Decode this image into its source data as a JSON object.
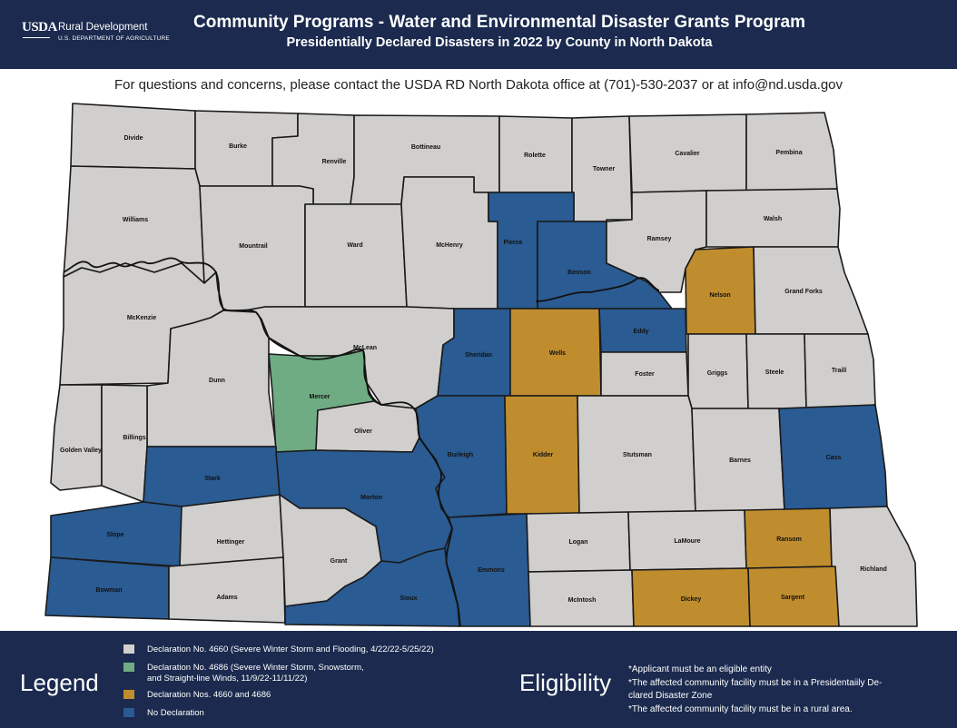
{
  "header": {
    "logo": {
      "mark": "USDA",
      "agency": "Rural Development",
      "department": "U.S. DEPARTMENT OF AGRICULTURE"
    },
    "title": "Community Programs - Water and Environmental Disaster Grants Program",
    "subtitle": "Presidentially Declared Disasters in 2022 by County in North Dakota"
  },
  "contact": "For questions and concerns, please contact the USDA RD North Dakota office at (701)-530-2037 or at info@nd.usda.gov",
  "colors": {
    "decl_4660": "#d1cfcd",
    "decl_4686": "#6fac84",
    "decl_both": "#c08d2e",
    "no_decl": "#2a5b92",
    "banner": "#1b2a4e"
  },
  "legend": {
    "title": "Legend",
    "items": [
      {
        "key": "decl_4660",
        "label": "Declaration No. 4660 (Severe Winter Storm and Flooding, 4/22/22-5/25/22)"
      },
      {
        "key": "decl_4686",
        "label": "Declaration No. 4686 (Severe Winter Storm, Snowstorm,\nand Straight-line Winds, 11/9/22-11/11/22)"
      },
      {
        "key": "decl_both",
        "label": "Declaration Nos. 4660 and 4686"
      },
      {
        "key": "no_decl",
        "label": "No Declaration"
      }
    ]
  },
  "eligibility": {
    "title": "Eligibility",
    "notes": [
      "*Applicant must be an eligible entity",
      "*The affected community facility must be in a Presidentaiily De-\nclared Disaster Zone",
      "*The affected community facility must be in a rural area."
    ]
  },
  "counties": [
    {
      "name": "Divide",
      "status": "decl_4660"
    },
    {
      "name": "Burke",
      "status": "decl_4660"
    },
    {
      "name": "Renville",
      "status": "decl_4660"
    },
    {
      "name": "Bottineau",
      "status": "decl_4660"
    },
    {
      "name": "Rolette",
      "status": "decl_4660"
    },
    {
      "name": "Towner",
      "status": "decl_4660"
    },
    {
      "name": "Cavalier",
      "status": "decl_4660"
    },
    {
      "name": "Pembina",
      "status": "decl_4660"
    },
    {
      "name": "Williams",
      "status": "decl_4660"
    },
    {
      "name": "Mountrail",
      "status": "decl_4660"
    },
    {
      "name": "Ward",
      "status": "decl_4660"
    },
    {
      "name": "McHenry",
      "status": "decl_4660"
    },
    {
      "name": "Pierce",
      "status": "no_decl"
    },
    {
      "name": "Benson",
      "status": "no_decl"
    },
    {
      "name": "Ramsey",
      "status": "decl_4660"
    },
    {
      "name": "Walsh",
      "status": "decl_4660"
    },
    {
      "name": "Nelson",
      "status": "decl_both"
    },
    {
      "name": "Grand Forks",
      "status": "decl_4660"
    },
    {
      "name": "McKenzie",
      "status": "decl_4660"
    },
    {
      "name": "McLean",
      "status": "decl_4660"
    },
    {
      "name": "Sheridan",
      "status": "no_decl"
    },
    {
      "name": "Wells",
      "status": "decl_both"
    },
    {
      "name": "Eddy",
      "status": "no_decl"
    },
    {
      "name": "Foster",
      "status": "decl_4660"
    },
    {
      "name": "Griggs",
      "status": "decl_4660"
    },
    {
      "name": "Steele",
      "status": "decl_4660"
    },
    {
      "name": "Traill",
      "status": "decl_4660"
    },
    {
      "name": "Dunn",
      "status": "decl_4660"
    },
    {
      "name": "Mercer",
      "status": "decl_4686"
    },
    {
      "name": "Oliver",
      "status": "decl_4660"
    },
    {
      "name": "Golden Valley",
      "status": "decl_4660"
    },
    {
      "name": "Billings",
      "status": "decl_4660"
    },
    {
      "name": "Stark",
      "status": "no_decl"
    },
    {
      "name": "Morton",
      "status": "no_decl"
    },
    {
      "name": "Burleigh",
      "status": "no_decl"
    },
    {
      "name": "Kidder",
      "status": "decl_both"
    },
    {
      "name": "Stutsman",
      "status": "decl_4660"
    },
    {
      "name": "Barnes",
      "status": "decl_4660"
    },
    {
      "name": "Cass",
      "status": "no_decl"
    },
    {
      "name": "Slope",
      "status": "no_decl"
    },
    {
      "name": "Hettinger",
      "status": "decl_4660"
    },
    {
      "name": "Grant",
      "status": "decl_4660"
    },
    {
      "name": "Emmons",
      "status": "no_decl"
    },
    {
      "name": "Logan",
      "status": "decl_4660"
    },
    {
      "name": "LaMoure",
      "status": "decl_4660"
    },
    {
      "name": "Ransom",
      "status": "decl_both"
    },
    {
      "name": "Richland",
      "status": "decl_4660"
    },
    {
      "name": "Bowman",
      "status": "no_decl"
    },
    {
      "name": "Adams",
      "status": "decl_4660"
    },
    {
      "name": "Sioux",
      "status": "no_decl"
    },
    {
      "name": "McIntosh",
      "status": "decl_4660"
    },
    {
      "name": "Dickey",
      "status": "decl_both"
    },
    {
      "name": "Sargent",
      "status": "decl_both"
    }
  ]
}
